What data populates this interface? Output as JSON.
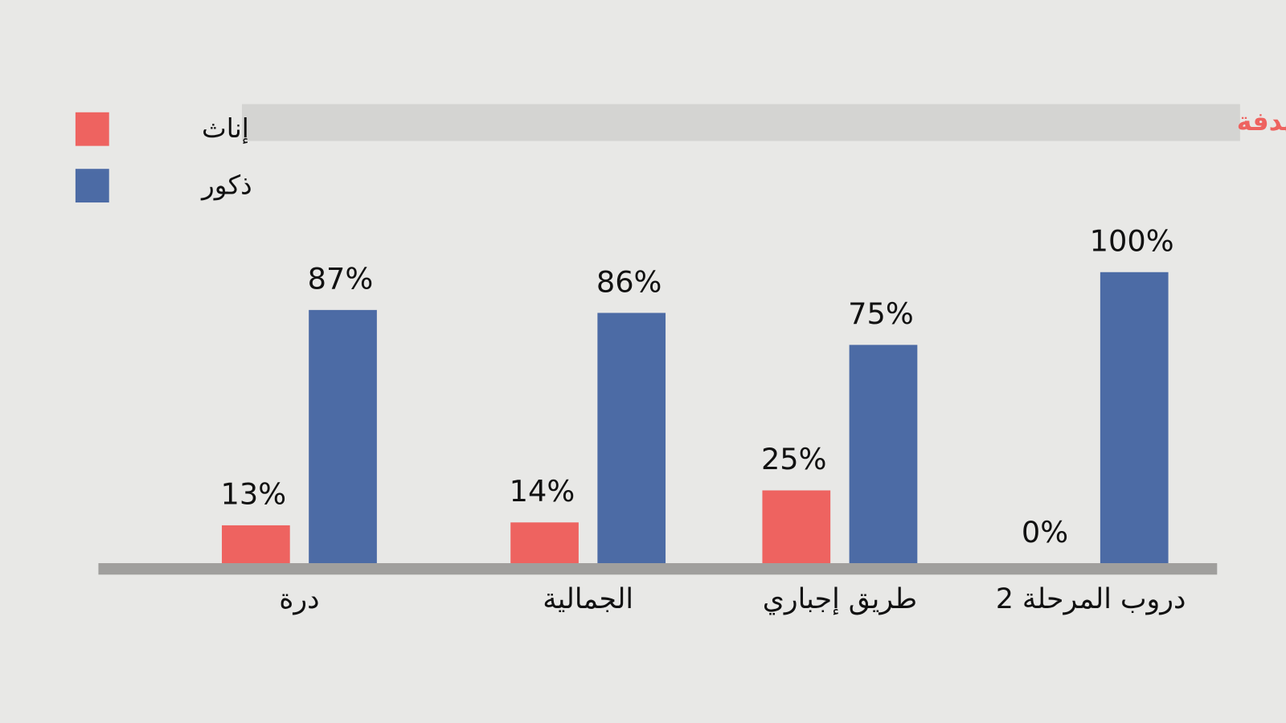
{
  "chart_data": {
    "type": "bar",
    "title": "نسبة تواجد النساء في أعمال الموسيقى والغناء في الأعمال الدرامية المستهدفة",
    "categories": [
      "درة",
      "الجمالية",
      "طريق إجباري",
      "دروب المرحلة 2"
    ],
    "series": [
      {
        "name": "إناث",
        "color": "#ee6360",
        "values": [
          13,
          14,
          25,
          0
        ],
        "value_labels": [
          "13%",
          "14%",
          "25%",
          "0%"
        ]
      },
      {
        "name": "ذكور",
        "color": "#4c6ba5",
        "values": [
          87,
          86,
          75,
          100
        ],
        "value_labels": [
          "87%",
          "86%",
          "75%",
          "100%"
        ]
      }
    ],
    "ylim": [
      0,
      100
    ]
  }
}
